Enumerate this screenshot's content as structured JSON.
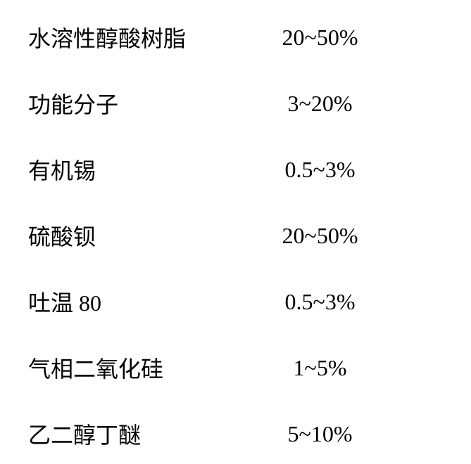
{
  "composition_table": {
    "type": "table",
    "font_size": 32,
    "font_family": "SimSun",
    "text_color": "#000000",
    "background_color": "#ffffff",
    "row_spacing": 48,
    "label_width": 300,
    "rows": [
      {
        "label": "水溶性醇酸树脂",
        "value": "20~50%"
      },
      {
        "label": "功能分子",
        "value": "3~20%"
      },
      {
        "label": "有机锡",
        "value": "0.5~3%"
      },
      {
        "label": "硫酸钡",
        "value": "20~50%"
      },
      {
        "label": "吐温 80",
        "value": "0.5~3%"
      },
      {
        "label": "气相二氧化硅",
        "value": "1~5%"
      },
      {
        "label": "乙二醇丁醚",
        "value": "5~10%"
      }
    ]
  }
}
